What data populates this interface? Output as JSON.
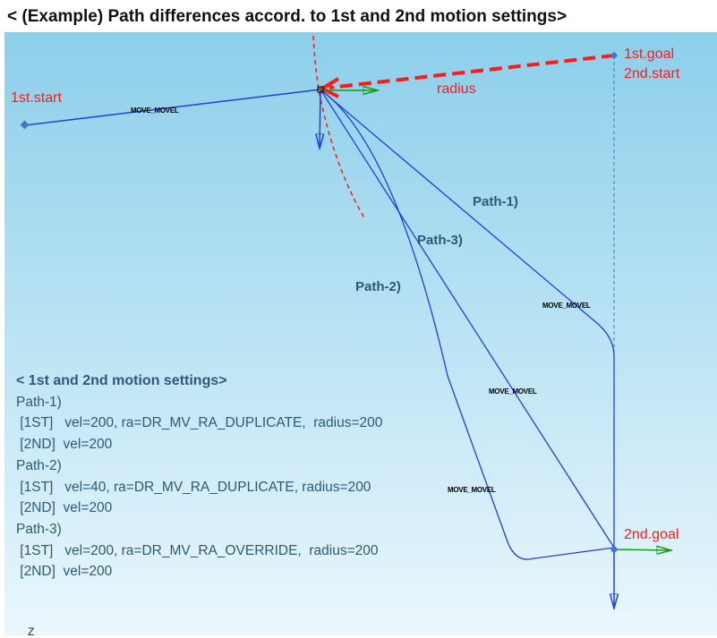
{
  "title": "< (Example) Path differences accord. to 1st and 2nd motion settings>",
  "points": {
    "start1": "1st.start",
    "goal1": "1st.goal",
    "start2": "2nd.start",
    "goal2": "2nd.goal",
    "radius": "radius"
  },
  "paths": [
    "Path-1)",
    "Path-2)",
    "Path-3)"
  ],
  "move_label": "MOVE_MOVEL",
  "settings": {
    "heading": "< 1st and 2nd motion settings>",
    "lines": [
      "Path-1)",
      " [1ST]   vel=200, ra=DR_MV_RA_DUPLICATE,  radius=200",
      " [2ND]  vel=200",
      "Path-2)",
      " [1ST]   vel=40, ra=DR_MV_RA_DUPLICATE, radius=200",
      " [2ND]  vel=200",
      "Path-3)",
      " [1ST]   vel=200, ra=DR_MV_RA_OVERRIDE,  radius=200",
      " [2ND]  vel=200"
    ]
  },
  "axis_label": "Z",
  "colors": {
    "path": "#1f3fe0",
    "annotation": "#ff1a1a",
    "x_axis": "#1a9a1a",
    "text": "#2c5a75"
  }
}
